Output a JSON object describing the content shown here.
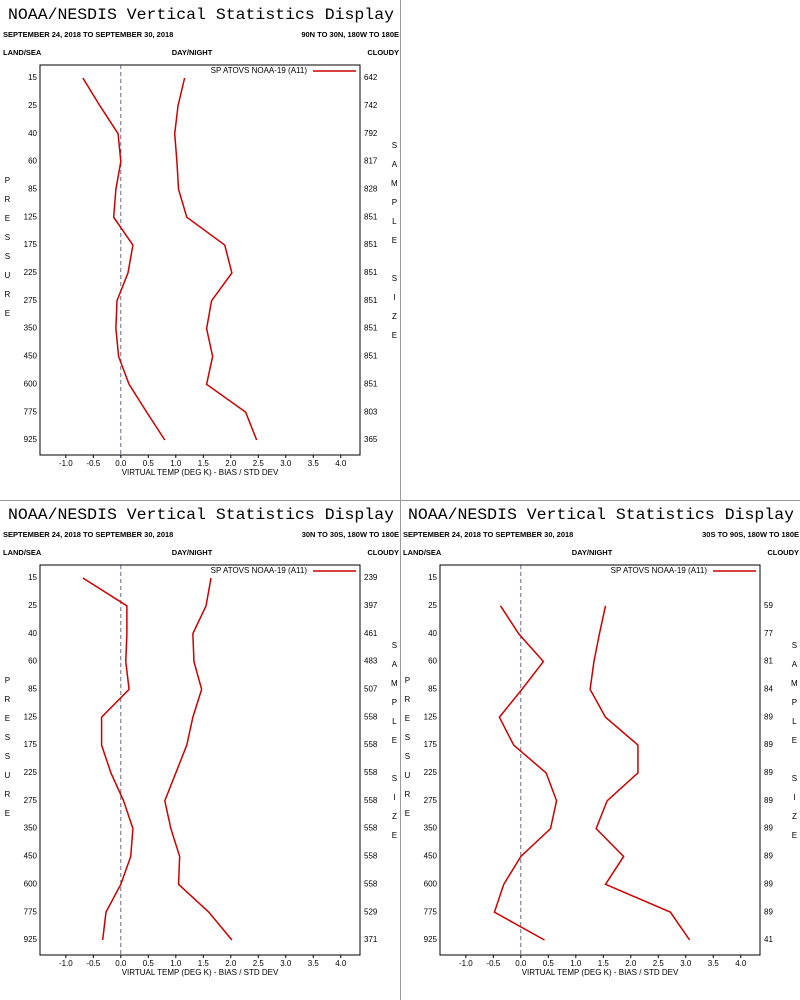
{
  "chart_data": [
    {
      "type": "line",
      "title": "NOAA/NESDIS Vertical Statistics Display",
      "subtitle": "SEPTEMBER 24, 2018 TO SEPTEMBER 30, 2018",
      "region": "90N TO 30N, 180W TO 180E",
      "corner_labels": {
        "left": "LAND/SEA",
        "center": "DAY/NIGHT",
        "right": "CLOUDY"
      },
      "y_label": "PRESSURE",
      "y2_label": "SAMPLE SIZE",
      "x_label": "VIRTUAL TEMP (DEG K) - BIAS / STD DEV",
      "categories": [
        "15",
        "25",
        "40",
        "60",
        "85",
        "125",
        "175",
        "225",
        "275",
        "350",
        "450",
        "600",
        "775",
        "925"
      ],
      "sample_size": [
        642,
        742,
        792,
        817,
        828,
        851,
        851,
        851,
        851,
        851,
        851,
        851,
        803,
        365
      ],
      "series": [
        {
          "name": "SP ATOVS NOAA-19 (A11)",
          "color": "#cc0000",
          "values": [
            -0.69,
            -0.38,
            -0.05,
            0.0,
            -0.09,
            -0.13,
            0.22,
            0.13,
            -0.07,
            -0.09,
            -0.04,
            0.15,
            0.47,
            0.8
          ],
          "std_dev": [
            1.16,
            1.04,
            0.98,
            1.02,
            1.05,
            1.2,
            1.89,
            2.02,
            1.65,
            1.56,
            1.67,
            1.56,
            2.27,
            2.47
          ]
        }
      ],
      "xlim": [
        -1.47,
        4.35
      ],
      "xticks": [
        {
          "value": -1,
          "label": "-1.0"
        },
        -0.5,
        {
          "value": 0,
          "label": "0.0"
        },
        0.5,
        {
          "value": 1,
          "label": "1.0"
        },
        1.5,
        {
          "value": 2,
          "label": "2.0"
        },
        2.5,
        {
          "value": 3,
          "label": "3.0"
        },
        3.5,
        {
          "value": 4,
          "label": "4.0"
        }
      ]
    },
    {
      "type": "line",
      "title": "NOAA/NESDIS Vertical Statistics Display",
      "subtitle": "SEPTEMBER 24, 2018 TO SEPTEMBER 30, 2018",
      "region": "30N TO 30S, 180W TO 180E",
      "corner_labels": {
        "left": "LAND/SEA",
        "center": "DAY/NIGHT",
        "right": "CLOUDY"
      },
      "y_label": "PRESSURE",
      "y2_label": "SAMPLE SIZE",
      "x_label": "VIRTUAL TEMP (DEG K) - BIAS / STD DEV",
      "categories": [
        "15",
        "25",
        "40",
        "60",
        "85",
        "125",
        "175",
        "225",
        "275",
        "350",
        "450",
        "600",
        "775",
        "925"
      ],
      "sample_size": [
        239,
        397,
        461,
        483,
        507,
        558,
        558,
        558,
        558,
        558,
        558,
        558,
        529,
        371
      ],
      "series": [
        {
          "name": "SP ATOVS NOAA-19 (A11)",
          "color": "#cc0000",
          "values": [
            -0.69,
            0.11,
            0.11,
            0.09,
            0.15,
            -0.35,
            -0.35,
            -0.18,
            0.05,
            0.22,
            0.18,
            0.0,
            -0.27,
            -0.33
          ],
          "std_dev": [
            1.64,
            1.55,
            1.31,
            1.33,
            1.47,
            1.31,
            1.2,
            1.0,
            0.8,
            0.91,
            1.07,
            1.05,
            1.6,
            2.02
          ]
        }
      ],
      "xlim": [
        -1.47,
        4.35
      ],
      "xticks": [
        {
          "value": -1,
          "label": "-1.0"
        },
        -0.5,
        {
          "value": 0,
          "label": "0.0"
        },
        0.5,
        {
          "value": 1,
          "label": "1.0"
        },
        1.5,
        {
          "value": 2,
          "label": "2.0"
        },
        2.5,
        {
          "value": 3,
          "label": "3.0"
        },
        3.5,
        {
          "value": 4,
          "label": "4.0"
        }
      ]
    },
    {
      "type": "line",
      "title": "NOAA/NESDIS Vertical Statistics Display",
      "subtitle": "SEPTEMBER 24, 2018 TO SEPTEMBER 30, 2018",
      "region": "30S TO 90S, 180W TO 180E",
      "corner_labels": {
        "left": "LAND/SEA",
        "center": "DAY/NIGHT",
        "right": "CLOUDY"
      },
      "y_label": "PRESSURE",
      "y2_label": "SAMPLE SIZE",
      "x_label": "VIRTUAL TEMP (DEG K) - BIAS / STD DEV",
      "categories": [
        "15",
        "25",
        "40",
        "60",
        "85",
        "125",
        "175",
        "225",
        "275",
        "350",
        "450",
        "600",
        "775",
        "925"
      ],
      "sample_size": [
        null,
        59,
        77,
        81,
        84,
        89,
        89,
        89,
        89,
        89,
        89,
        89,
        89,
        41
      ],
      "series": [
        {
          "name": "SP ATOVS NOAA-19 (A11)",
          "color": "#cc0000",
          "values": [
            null,
            -0.37,
            -0.04,
            0.41,
            0.02,
            -0.39,
            -0.13,
            0.46,
            0.65,
            0.54,
            0.0,
            -0.31,
            -0.48,
            0.43
          ],
          "std_dev": [
            null,
            1.54,
            1.43,
            1.33,
            1.26,
            1.54,
            2.13,
            2.13,
            1.57,
            1.37,
            1.87,
            1.54,
            2.72,
            3.07
          ]
        }
      ],
      "xlim": [
        -1.47,
        4.35
      ],
      "xticks": [
        {
          "value": -1,
          "label": "-1.0"
        },
        -0.5,
        {
          "value": 0,
          "label": "0.0"
        },
        0.5,
        {
          "value": 1,
          "label": "1.0"
        },
        1.5,
        {
          "value": 2,
          "label": "2.0"
        },
        2.5,
        {
          "value": 3,
          "label": "3.0"
        },
        3.5,
        {
          "value": 4,
          "label": "4.0"
        }
      ]
    }
  ]
}
